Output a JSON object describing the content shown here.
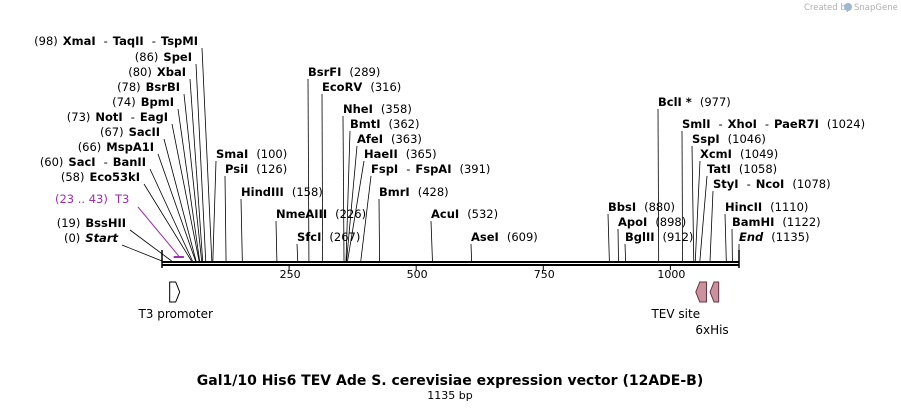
{
  "credit": {
    "prefix": "Created by",
    "brand": "SnapGene"
  },
  "map": {
    "title": "Gal1/10 His6 TEV Ade S. cerevisiae expression vector (12ADE-B)",
    "length_label": "1135 bp",
    "length": 1135,
    "ticks": [
      {
        "value": 250,
        "label": "250"
      },
      {
        "value": 500,
        "label": "500"
      },
      {
        "value": 750,
        "label": "750"
      },
      {
        "value": 1000,
        "label": "1000"
      }
    ],
    "colors": {
      "backbone": "#000000",
      "primer": "#9b2fae",
      "feature_fill": "#c8929e",
      "feature_stroke": "#6b3040",
      "promoter_fill": "#ffffff"
    }
  },
  "sites": [
    {
      "pos": 98,
      "segments": [
        {
          "text": "(98)",
          "style": "pos"
        },
        {
          "text": "XmaI",
          "style": "en"
        },
        {
          "text": "-",
          "style": "pos"
        },
        {
          "text": "TaqII",
          "style": "en"
        },
        {
          "text": "-",
          "style": "pos"
        },
        {
          "text": "TspMI",
          "style": "en"
        }
      ]
    },
    {
      "pos": 86,
      "segments": [
        {
          "text": "(86)",
          "style": "pos"
        },
        {
          "text": "SpeI",
          "style": "en"
        }
      ]
    },
    {
      "pos": 80,
      "segments": [
        {
          "text": "(80)",
          "style": "pos"
        },
        {
          "text": "XbaI",
          "style": "en"
        }
      ]
    },
    {
      "pos": 78,
      "segments": [
        {
          "text": "(78)",
          "style": "pos"
        },
        {
          "text": "BsrBI",
          "style": "en"
        }
      ]
    },
    {
      "pos": 74,
      "segments": [
        {
          "text": "(74)",
          "style": "pos"
        },
        {
          "text": "BpmI",
          "style": "en"
        }
      ]
    },
    {
      "pos": 73,
      "segments": [
        {
          "text": "(73)",
          "style": "pos"
        },
        {
          "text": "NotI",
          "style": "en"
        },
        {
          "text": "-",
          "style": "pos"
        },
        {
          "text": "EagI",
          "style": "en"
        }
      ]
    },
    {
      "pos": 67,
      "segments": [
        {
          "text": "(67)",
          "style": "pos"
        },
        {
          "text": "SacII",
          "style": "en"
        }
      ]
    },
    {
      "pos": 66,
      "segments": [
        {
          "text": "(66)",
          "style": "pos"
        },
        {
          "text": "MspA1I",
          "style": "en"
        }
      ]
    },
    {
      "pos": 60,
      "segments": [
        {
          "text": "(60)",
          "style": "pos"
        },
        {
          "text": "SacI",
          "style": "en"
        },
        {
          "text": "-",
          "style": "pos"
        },
        {
          "text": "BanII",
          "style": "en"
        }
      ]
    },
    {
      "pos": 58,
      "segments": [
        {
          "text": "(58)",
          "style": "pos"
        },
        {
          "text": "Eco53kI",
          "style": "en"
        }
      ]
    },
    {
      "pos": 19,
      "segments": [
        {
          "text": "(19)",
          "style": "pos"
        },
        {
          "text": "BssHII",
          "style": "en"
        }
      ]
    },
    {
      "pos": 0,
      "segments": [
        {
          "text": "(0)",
          "style": "pos"
        },
        {
          "text": "Start",
          "style": "en it"
        }
      ]
    },
    {
      "pos": 289,
      "segments": [
        {
          "text": "BsrFI",
          "style": "en"
        },
        {
          "text": "(289)",
          "style": "pos"
        }
      ]
    },
    {
      "pos": 316,
      "segments": [
        {
          "text": "EcoRV",
          "style": "en"
        },
        {
          "text": "(316)",
          "style": "pos"
        }
      ]
    },
    {
      "pos": 100,
      "segments": [
        {
          "text": "SmaI",
          "style": "en"
        },
        {
          "text": "(100)",
          "style": "pos"
        }
      ]
    },
    {
      "pos": 126,
      "segments": [
        {
          "text": "PsiI",
          "style": "en"
        },
        {
          "text": "(126)",
          "style": "pos"
        }
      ]
    },
    {
      "pos": 158,
      "segments": [
        {
          "text": "HindIII",
          "style": "en"
        },
        {
          "text": "(158)",
          "style": "pos"
        }
      ]
    },
    {
      "pos": 358,
      "segments": [
        {
          "text": "NheI",
          "style": "en"
        },
        {
          "text": "(358)",
          "style": "pos"
        }
      ]
    },
    {
      "pos": 362,
      "segments": [
        {
          "text": "BmtI",
          "style": "en"
        },
        {
          "text": "(362)",
          "style": "pos"
        }
      ]
    },
    {
      "pos": 363,
      "segments": [
        {
          "text": "AfeI",
          "style": "en"
        },
        {
          "text": "(363)",
          "style": "pos"
        }
      ]
    },
    {
      "pos": 365,
      "segments": [
        {
          "text": "HaeII",
          "style": "en"
        },
        {
          "text": "(365)",
          "style": "pos"
        }
      ]
    },
    {
      "pos": 391,
      "segments": [
        {
          "text": "FspI",
          "style": "en"
        },
        {
          "text": "-",
          "style": "pos"
        },
        {
          "text": "FspAI",
          "style": "en"
        },
        {
          "text": "(391)",
          "style": "pos"
        }
      ]
    },
    {
      "pos": 428,
      "segments": [
        {
          "text": "BmrI",
          "style": "en"
        },
        {
          "text": "(428)",
          "style": "pos"
        }
      ]
    },
    {
      "pos": 226,
      "segments": [
        {
          "text": "NmeAIII",
          "style": "en"
        },
        {
          "text": "(226)",
          "style": "pos"
        }
      ]
    },
    {
      "pos": 267,
      "segments": [
        {
          "text": "SfcI",
          "style": "en"
        },
        {
          "text": "(267)",
          "style": "pos"
        }
      ]
    },
    {
      "pos": 532,
      "segments": [
        {
          "text": "AcuI",
          "style": "en"
        },
        {
          "text": "(532)",
          "style": "pos"
        }
      ]
    },
    {
      "pos": 609,
      "segments": [
        {
          "text": "AseI",
          "style": "en"
        },
        {
          "text": "(609)",
          "style": "pos"
        }
      ]
    },
    {
      "pos": 977,
      "segments": [
        {
          "text": "BclI *",
          "style": "en"
        },
        {
          "text": "(977)",
          "style": "pos"
        }
      ]
    },
    {
      "pos": 1024,
      "segments": [
        {
          "text": "SmlI",
          "style": "en"
        },
        {
          "text": "-",
          "style": "pos"
        },
        {
          "text": "XhoI",
          "style": "en"
        },
        {
          "text": "-",
          "style": "pos"
        },
        {
          "text": "PaeR7I",
          "style": "en"
        },
        {
          "text": "(1024)",
          "style": "pos"
        }
      ]
    },
    {
      "pos": 1046,
      "segments": [
        {
          "text": "SspI",
          "style": "en"
        },
        {
          "text": "(1046)",
          "style": "pos"
        }
      ]
    },
    {
      "pos": 1049,
      "segments": [
        {
          "text": "XcmI",
          "style": "en"
        },
        {
          "text": "(1049)",
          "style": "pos"
        }
      ]
    },
    {
      "pos": 1058,
      "segments": [
        {
          "text": "TatI",
          "style": "en"
        },
        {
          "text": "(1058)",
          "style": "pos"
        }
      ]
    },
    {
      "pos": 1078,
      "segments": [
        {
          "text": "StyI",
          "style": "en"
        },
        {
          "text": "-",
          "style": "pos"
        },
        {
          "text": "NcoI",
          "style": "en"
        },
        {
          "text": "(1078)",
          "style": "pos"
        }
      ]
    },
    {
      "pos": 880,
      "segments": [
        {
          "text": "BbsI",
          "style": "en"
        },
        {
          "text": "(880)",
          "style": "pos"
        }
      ]
    },
    {
      "pos": 898,
      "segments": [
        {
          "text": "ApoI",
          "style": "en"
        },
        {
          "text": "(898)",
          "style": "pos"
        }
      ]
    },
    {
      "pos": 912,
      "segments": [
        {
          "text": "BglII",
          "style": "en"
        },
        {
          "text": "(912)",
          "style": "pos"
        }
      ]
    },
    {
      "pos": 1110,
      "segments": [
        {
          "text": "HincII",
          "style": "en"
        },
        {
          "text": "(1110)",
          "style": "pos"
        }
      ]
    },
    {
      "pos": 1122,
      "segments": [
        {
          "text": "BamHI",
          "style": "en"
        },
        {
          "text": "(1122)",
          "style": "pos"
        }
      ]
    },
    {
      "pos": 1135,
      "segments": [
        {
          "text": "End",
          "style": "en it"
        },
        {
          "text": "(1135)",
          "style": "pos"
        }
      ]
    }
  ],
  "primer": {
    "name": "T3",
    "range_label": "(23 .. 43)",
    "start": 23,
    "end": 43
  },
  "features": [
    {
      "name": "T3 promoter",
      "start": 23,
      "end": 43,
      "direction": "forward",
      "kind": "promoter"
    },
    {
      "name": "TEV site",
      "start": 1050,
      "end": 1071,
      "direction": "reverse",
      "kind": "site"
    },
    {
      "name": "6xHis",
      "start": 1078,
      "end": 1095,
      "direction": "reverse",
      "kind": "tag"
    }
  ]
}
